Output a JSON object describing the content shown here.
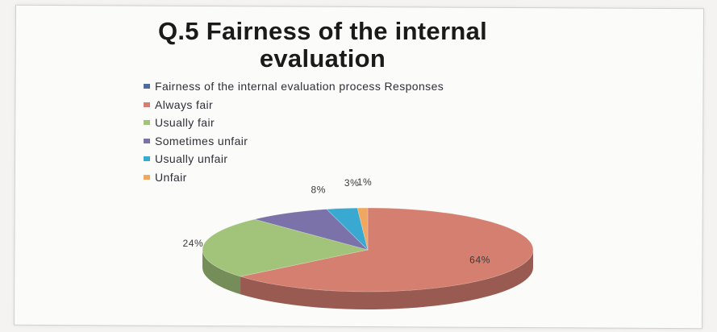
{
  "chart_data": {
    "type": "pie",
    "title": "Q.5 Fairness of the internal evaluation",
    "series_name": "Fairness of the internal evaluation process Responses",
    "categories": [
      "Always fair",
      "Usually fair",
      "Sometimes unfair",
      "Usually unfair",
      "Unfair"
    ],
    "values": [
      64,
      24,
      8,
      3,
      1
    ],
    "labels": [
      "64%",
      "24%",
      "8%",
      "3%",
      "1%"
    ],
    "colors": [
      "#d47f70",
      "#a2c47a",
      "#7a72a8",
      "#3aa9d2",
      "#f0a860"
    ],
    "series_color": "#4f6c9a",
    "legend_position": "top-left"
  }
}
